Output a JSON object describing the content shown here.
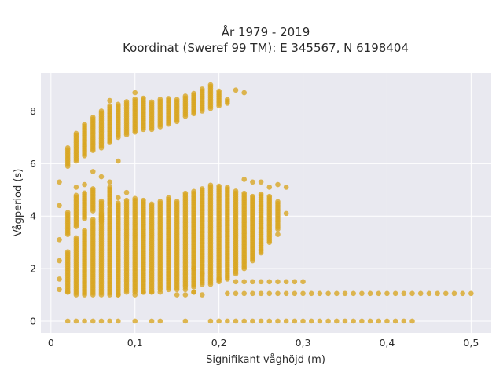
{
  "chart_data": {
    "type": "scatter",
    "title_line1": "År 1979 - 2019",
    "title_line2": "Koordinat (Sweref 99 TM): E 345567, N 6198404",
    "xlabel": "Signifikant våghöjd (m)",
    "ylabel": "Vågperiod (s)",
    "xlim": [
      -0.012,
      0.524
    ],
    "ylim": [
      -0.45,
      9.45
    ],
    "x_ticks": [
      0,
      0.1,
      0.2,
      0.3,
      0.4,
      0.5
    ],
    "x_tick_labels": [
      "0",
      "0,1",
      "0,2",
      "0,3",
      "0,4",
      "0,5"
    ],
    "y_ticks": [
      0,
      2,
      4,
      6,
      8
    ],
    "y_tick_labels": [
      "0",
      "2",
      "4",
      "6",
      "8"
    ],
    "grid": true,
    "legend": "none",
    "colors": {
      "plot_bg": "#e9e9f0",
      "grid": "#ffffff",
      "marker": "#d8a520",
      "marker_opacity": 0.78
    },
    "x_step": 0.01,
    "y_step": 0.07,
    "column_ranges": [
      {
        "x": 0.02,
        "ranges": [
          [
            5.9,
            6.6
          ],
          [
            3.3,
            4.2
          ],
          [
            1.1,
            2.7
          ]
        ]
      },
      {
        "x": 0.03,
        "ranges": [
          [
            6.1,
            7.2
          ],
          [
            3.6,
            4.8
          ],
          [
            1.0,
            3.2
          ]
        ]
      },
      {
        "x": 0.04,
        "ranges": [
          [
            6.3,
            7.5
          ],
          [
            3.9,
            4.9
          ],
          [
            1.0,
            3.5
          ]
        ]
      },
      {
        "x": 0.05,
        "ranges": [
          [
            6.5,
            7.8
          ],
          [
            4.2,
            5.1
          ],
          [
            1.0,
            3.9
          ]
        ]
      },
      {
        "x": 0.06,
        "ranges": [
          [
            6.6,
            8.0
          ],
          [
            3.8,
            4.6
          ],
          [
            1.0,
            4.1
          ]
        ]
      },
      {
        "x": 0.07,
        "ranges": [
          [
            6.8,
            8.2
          ],
          [
            4.4,
            5.1
          ],
          [
            1.0,
            4.3
          ]
        ]
      },
      {
        "x": 0.08,
        "ranges": [
          [
            7.0,
            8.3
          ],
          [
            1.0,
            4.5
          ]
        ]
      },
      {
        "x": 0.09,
        "ranges": [
          [
            7.1,
            8.4
          ],
          [
            1.1,
            4.6
          ]
        ]
      },
      {
        "x": 0.1,
        "ranges": [
          [
            7.2,
            8.5
          ],
          [
            1.1,
            4.7
          ]
        ]
      },
      {
        "x": 0.11,
        "ranges": [
          [
            7.3,
            8.5
          ],
          [
            1.1,
            4.6
          ]
        ]
      },
      {
        "x": 0.12,
        "ranges": [
          [
            7.3,
            8.4
          ],
          [
            1.1,
            4.5
          ]
        ]
      },
      {
        "x": 0.13,
        "ranges": [
          [
            7.4,
            8.5
          ],
          [
            1.2,
            4.6
          ]
        ]
      },
      {
        "x": 0.14,
        "ranges": [
          [
            7.5,
            8.5
          ],
          [
            1.2,
            4.7
          ]
        ]
      },
      {
        "x": 0.15,
        "ranges": [
          [
            7.6,
            8.5
          ],
          [
            1.2,
            4.6
          ]
        ]
      },
      {
        "x": 0.16,
        "ranges": [
          [
            7.8,
            8.6
          ],
          [
            1.3,
            4.9
          ]
        ]
      },
      {
        "x": 0.17,
        "ranges": [
          [
            7.9,
            8.7
          ],
          [
            1.3,
            5.0
          ]
        ]
      },
      {
        "x": 0.18,
        "ranges": [
          [
            8.0,
            8.9
          ],
          [
            1.4,
            5.1
          ]
        ]
      },
      {
        "x": 0.19,
        "ranges": [
          [
            8.1,
            9.0
          ],
          [
            1.4,
            5.2
          ]
        ]
      },
      {
        "x": 0.2,
        "ranges": [
          [
            8.2,
            8.8
          ],
          [
            1.5,
            5.2
          ]
        ]
      },
      {
        "x": 0.21,
        "ranges": [
          [
            8.3,
            8.5
          ],
          [
            1.6,
            5.1
          ]
        ]
      },
      {
        "x": 0.22,
        "ranges": [
          [
            1.8,
            5.0
          ]
        ]
      },
      {
        "x": 0.23,
        "ranges": [
          [
            2.0,
            4.9
          ]
        ]
      },
      {
        "x": 0.24,
        "ranges": [
          [
            2.3,
            4.8
          ]
        ]
      },
      {
        "x": 0.25,
        "ranges": [
          [
            2.6,
            4.9
          ]
        ]
      },
      {
        "x": 0.26,
        "ranges": [
          [
            3.0,
            4.8
          ]
        ]
      },
      {
        "x": 0.27,
        "ranges": [
          [
            3.5,
            4.6
          ]
        ]
      }
    ],
    "extra_points": [
      [
        0.01,
        5.3
      ],
      [
        0.01,
        4.4
      ],
      [
        0.01,
        3.1
      ],
      [
        0.01,
        2.3
      ],
      [
        0.01,
        1.6
      ],
      [
        0.01,
        1.2
      ],
      [
        0.02,
        1.1
      ],
      [
        0.03,
        5.1
      ],
      [
        0.04,
        5.2
      ],
      [
        0.05,
        5.7
      ],
      [
        0.06,
        5.5
      ],
      [
        0.07,
        8.4
      ],
      [
        0.07,
        5.3
      ],
      [
        0.08,
        6.1
      ],
      [
        0.08,
        4.7
      ],
      [
        0.09,
        4.9
      ],
      [
        0.1,
        8.7
      ],
      [
        0.19,
        9.0
      ],
      [
        0.22,
        8.8
      ],
      [
        0.23,
        8.7
      ],
      [
        0.23,
        5.4
      ],
      [
        0.24,
        5.3
      ],
      [
        0.25,
        5.3
      ],
      [
        0.26,
        5.1
      ],
      [
        0.27,
        5.2
      ],
      [
        0.28,
        4.1
      ],
      [
        0.28,
        5.1
      ],
      [
        0.27,
        3.3
      ],
      [
        0.08,
        1.0
      ],
      [
        0.1,
        1.0
      ],
      [
        0.11,
        1.1
      ],
      [
        0.12,
        1.1
      ],
      [
        0.13,
        1.1
      ],
      [
        0.15,
        1.0
      ],
      [
        0.16,
        1.0
      ],
      [
        0.17,
        1.1
      ],
      [
        0.18,
        1.0
      ],
      [
        0.2,
        1.6
      ],
      [
        0.17,
        2.0
      ],
      [
        0.18,
        1.8
      ],
      [
        0.02,
        0.0
      ],
      [
        0.03,
        0.0
      ],
      [
        0.04,
        0.0
      ],
      [
        0.05,
        0.0
      ],
      [
        0.06,
        0.0
      ],
      [
        0.07,
        0.0
      ],
      [
        0.08,
        0.0
      ],
      [
        0.1,
        0.0
      ],
      [
        0.12,
        0.0
      ],
      [
        0.13,
        0.0
      ],
      [
        0.16,
        0.0
      ],
      [
        0.19,
        0.0
      ],
      [
        0.2,
        0.0
      ],
      [
        0.21,
        0.0
      ],
      [
        0.22,
        0.0
      ],
      [
        0.23,
        0.0
      ],
      [
        0.24,
        0.0
      ],
      [
        0.25,
        0.0
      ],
      [
        0.26,
        0.0
      ],
      [
        0.27,
        0.0
      ],
      [
        0.28,
        0.0
      ],
      [
        0.29,
        0.0
      ],
      [
        0.3,
        0.0
      ],
      [
        0.31,
        0.0
      ],
      [
        0.32,
        0.0
      ],
      [
        0.33,
        0.0
      ],
      [
        0.34,
        0.0
      ],
      [
        0.35,
        0.0
      ],
      [
        0.36,
        0.0
      ],
      [
        0.37,
        0.0
      ],
      [
        0.38,
        0.0
      ],
      [
        0.39,
        0.0
      ],
      [
        0.4,
        0.0
      ],
      [
        0.41,
        0.0
      ],
      [
        0.42,
        0.0
      ],
      [
        0.43,
        0.0
      ],
      [
        0.22,
        1.5
      ],
      [
        0.23,
        1.5
      ],
      [
        0.24,
        1.5
      ],
      [
        0.25,
        1.5
      ],
      [
        0.26,
        1.5
      ],
      [
        0.27,
        1.5
      ],
      [
        0.28,
        1.5
      ],
      [
        0.29,
        1.5
      ],
      [
        0.3,
        1.5
      ],
      [
        0.16,
        1.2
      ],
      [
        0.17,
        1.1
      ]
    ],
    "tail_x": [
      0.21,
      0.22,
      0.23,
      0.24,
      0.25,
      0.26,
      0.27,
      0.28,
      0.29,
      0.3,
      0.31,
      0.32,
      0.33,
      0.34,
      0.35,
      0.36,
      0.37,
      0.38,
      0.39,
      0.4,
      0.41,
      0.42,
      0.43,
      0.44,
      0.45,
      0.46,
      0.47,
      0.48,
      0.49,
      0.5
    ],
    "tail_y": 1.05
  }
}
